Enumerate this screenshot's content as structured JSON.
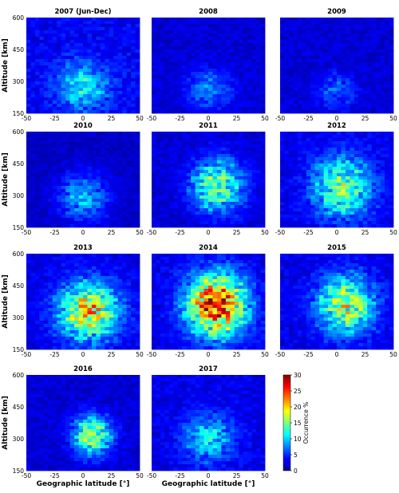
{
  "chart_data": {
    "type": "heatmap",
    "xlabel": "Geographic latitude [°]",
    "ylabel": "Altitude [km]",
    "xlim": [
      -50,
      50
    ],
    "ylim": [
      150,
      600
    ],
    "xticks": [
      "-50",
      "-25",
      "0",
      "25",
      "50"
    ],
    "yticks": [
      "150",
      "300",
      "450",
      "600"
    ],
    "colorbar": {
      "label": "Occurrence %",
      "range": [
        0,
        30
      ],
      "ticks": [
        "0",
        "5",
        "10",
        "15",
        "20",
        "25",
        "30"
      ],
      "colormap": "jet"
    },
    "panels": [
      {
        "title": "2007 (Jun-Dec)",
        "center_lat": 0,
        "center_alt": 275,
        "peak": 9,
        "lat_width": 22,
        "alt_width": 110,
        "background": 3.5
      },
      {
        "title": "2008",
        "center_lat": 0,
        "center_alt": 265,
        "peak": 6,
        "lat_width": 20,
        "alt_width": 90,
        "background": 2.5
      },
      {
        "title": "2009",
        "center_lat": 0,
        "center_alt": 255,
        "peak": 5,
        "lat_width": 16,
        "alt_width": 80,
        "background": 2.5
      },
      {
        "title": "2010",
        "center_lat": 0,
        "center_alt": 290,
        "peak": 8,
        "lat_width": 22,
        "alt_width": 110,
        "background": 2.0
      },
      {
        "title": "2011",
        "center_lat": 8,
        "center_alt": 345,
        "peak": 15,
        "lat_width": 22,
        "alt_width": 120,
        "background": 2.5
      },
      {
        "title": "2012",
        "center_lat": 5,
        "center_alt": 340,
        "peak": 14,
        "lat_width": 26,
        "alt_width": 140,
        "background": 3.0
      },
      {
        "title": "2013",
        "center_lat": 5,
        "center_alt": 330,
        "peak": 20,
        "lat_width": 25,
        "alt_width": 130,
        "background": 3.0
      },
      {
        "title": "2014",
        "center_lat": 7,
        "center_alt": 360,
        "peak": 28,
        "lat_width": 25,
        "alt_width": 140,
        "background": 3.0
      },
      {
        "title": "2015",
        "center_lat": 8,
        "center_alt": 360,
        "peak": 17,
        "lat_width": 24,
        "alt_width": 130,
        "background": 3.0
      },
      {
        "title": "2016",
        "center_lat": 8,
        "center_alt": 315,
        "peak": 16,
        "lat_width": 16,
        "alt_width": 90,
        "background": 2.5
      },
      {
        "title": "2017",
        "center_lat": 0,
        "center_alt": 300,
        "peak": 9,
        "lat_width": 22,
        "alt_width": 110,
        "background": 3.0
      }
    ]
  }
}
